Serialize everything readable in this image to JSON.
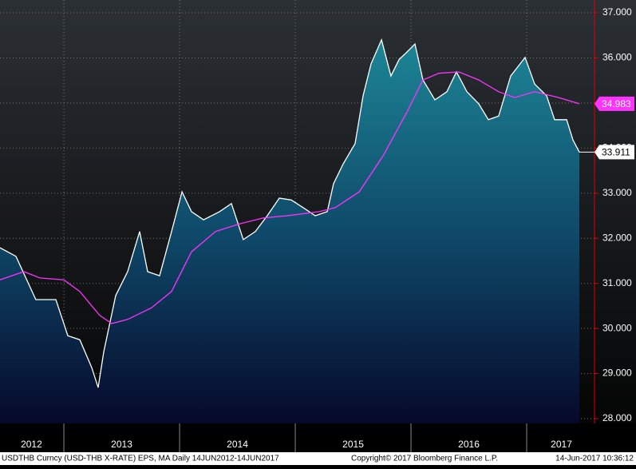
{
  "chart_data": {
    "type": "line",
    "ylim": [
      27.894,
      37.284
    ],
    "yticks": [
      {
        "value": 28,
        "label": "28.000"
      },
      {
        "value": 29,
        "label": "29.000"
      },
      {
        "value": 30,
        "label": "30.000"
      },
      {
        "value": 31,
        "label": "31.000"
      },
      {
        "value": 32,
        "label": "32.000"
      },
      {
        "value": 33,
        "label": "33.000"
      },
      {
        "value": 34,
        "label": "34.000"
      },
      {
        "value": 35,
        "label": "35.000"
      },
      {
        "value": 36,
        "label": "36.000"
      },
      {
        "value": 37,
        "label": "37.000"
      }
    ],
    "xlim": [
      2012.448,
      2017.586
    ],
    "xticks": [
      {
        "value": 2012.72,
        "label": "2012"
      },
      {
        "value": 2013.5,
        "label": "2013"
      },
      {
        "value": 2014.5,
        "label": "2014"
      },
      {
        "value": 2015.5,
        "label": "2015"
      },
      {
        "value": 2016.5,
        "label": "2016"
      },
      {
        "value": 2017.3,
        "label": "2017"
      }
    ],
    "year_boundaries": [
      2013,
      2014,
      2015,
      2016,
      2017
    ],
    "grid": true,
    "series": [
      {
        "name": "USDTHB",
        "color": "#ffffff",
        "area": true,
        "x": [
          2012.448,
          2012.586,
          2012.758,
          2012.931,
          2013.034,
          2013.138,
          2013.241,
          2013.296,
          2013.345,
          2013.448,
          2013.551,
          2013.655,
          2013.724,
          2013.827,
          2013.931,
          2014.021,
          2014.103,
          2014.207,
          2014.345,
          2014.448,
          2014.551,
          2014.655,
          2014.758,
          2014.862,
          2014.965,
          2015.069,
          2015.172,
          2015.276,
          2015.331,
          2015.414,
          2015.517,
          2015.586,
          2015.655,
          2015.745,
          2015.827,
          2015.896,
          2015.965,
          2016.034,
          2016.103,
          2016.207,
          2016.31,
          2016.393,
          2016.483,
          2016.586,
          2016.669,
          2016.758,
          2016.862,
          2016.986,
          2017.069,
          2017.172,
          2017.241,
          2017.345,
          2017.4,
          2017.455
        ],
        "values": [
          31.79,
          31.6,
          30.64,
          30.64,
          29.84,
          29.75,
          29.13,
          28.69,
          29.49,
          30.73,
          31.26,
          32.15,
          31.26,
          31.17,
          32.15,
          33.03,
          32.59,
          32.41,
          32.59,
          32.77,
          31.97,
          32.15,
          32.5,
          32.89,
          32.85,
          32.68,
          32.5,
          32.59,
          33.21,
          33.65,
          34.1,
          35.16,
          35.87,
          36.4,
          35.6,
          35.96,
          36.13,
          36.31,
          35.51,
          35.07,
          35.25,
          35.69,
          35.25,
          34.98,
          34.63,
          34.71,
          35.6,
          36.01,
          35.42,
          35.16,
          34.63,
          34.63,
          34.18,
          33.911
        ]
      },
      {
        "name": "MA",
        "color": "#ff33ff",
        "x": [
          2012.448,
          2012.655,
          2012.793,
          2013.0,
          2013.138,
          2013.31,
          2013.414,
          2013.551,
          2013.758,
          2013.931,
          2014.103,
          2014.31,
          2014.517,
          2014.724,
          2014.931,
          2015.207,
          2015.345,
          2015.552,
          2015.759,
          2015.965,
          2016.103,
          2016.241,
          2016.414,
          2016.586,
          2016.758,
          2016.896,
          2017.069,
          2017.276,
          2017.455
        ],
        "values": [
          31.08,
          31.26,
          31.12,
          31.08,
          30.82,
          30.29,
          30.11,
          30.2,
          30.46,
          30.82,
          31.7,
          32.15,
          32.32,
          32.45,
          32.5,
          32.59,
          32.68,
          33.03,
          33.83,
          34.8,
          35.51,
          35.66,
          35.69,
          35.51,
          35.25,
          35.12,
          35.25,
          35.12,
          34.983
        ]
      }
    ],
    "footer": {
      "left": "USDTHB Curncy (USD-THB X-RATE) EPS, MA  Daily 14JUN2012-14JUN2017",
      "center": "Copyright© 2017 Bloomberg Finance L.P.",
      "right": "14-Jun-2017 10:36:12"
    }
  }
}
